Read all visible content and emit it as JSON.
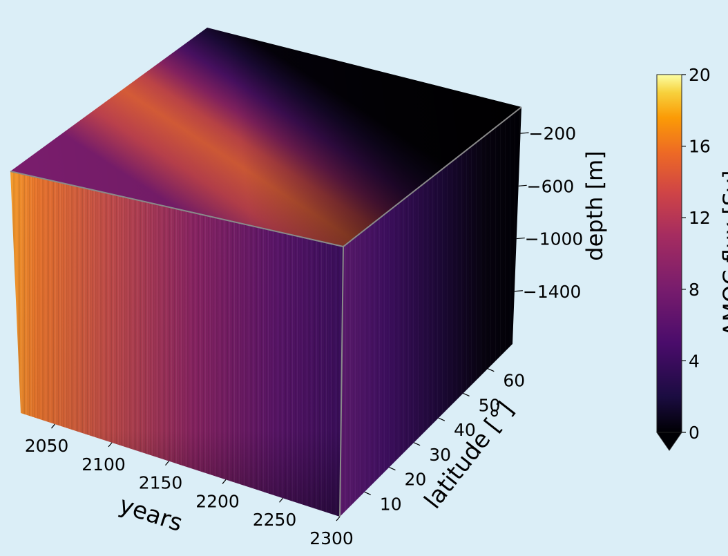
{
  "chart_data": {
    "type": "heatmap",
    "projection": "3d-cube",
    "colormap": "inferno",
    "axes": {
      "x": {
        "label": "years",
        "ticks": [
          "2050",
          "2100",
          "2150",
          "2200",
          "2250",
          "2300"
        ],
        "range": [
          2020,
          2300
        ]
      },
      "y": {
        "label": "latitude [°]",
        "ticks": [
          "10",
          "20",
          "30",
          "40",
          "50",
          "60"
        ],
        "range": [
          0,
          70
        ]
      },
      "z": {
        "label": "depth [m]",
        "ticks": [
          "−200",
          "−600",
          "−1000",
          "−1400"
        ],
        "range": [
          -1800,
          0
        ]
      }
    },
    "colorbar": {
      "label": "AMOC flux [Sv]",
      "ticks": [
        "0",
        "4",
        "8",
        "12",
        "16",
        "20"
      ],
      "range": [
        0,
        20
      ],
      "extend": "min"
    },
    "faces": {
      "top_surface_by_year_latitude": "strongest (~12–13 Sv) along a band at mid latitudes, decaying toward 0 at high latitudes and later years",
      "front_years_by_depth": [
        {
          "year": 2030,
          "value": 15
        },
        {
          "year": 2100,
          "value": 12
        },
        {
          "year": 2150,
          "value": 10
        },
        {
          "year": 2200,
          "value": 7
        },
        {
          "year": 2250,
          "value": 5
        },
        {
          "year": 2300,
          "value": 3
        }
      ],
      "side_latitude_by_depth": [
        {
          "latitude": 5,
          "value": 4
        },
        {
          "latitude": 30,
          "value": 3
        },
        {
          "latitude": 50,
          "value": 1
        },
        {
          "latitude": 70,
          "value": 0
        }
      ]
    }
  }
}
